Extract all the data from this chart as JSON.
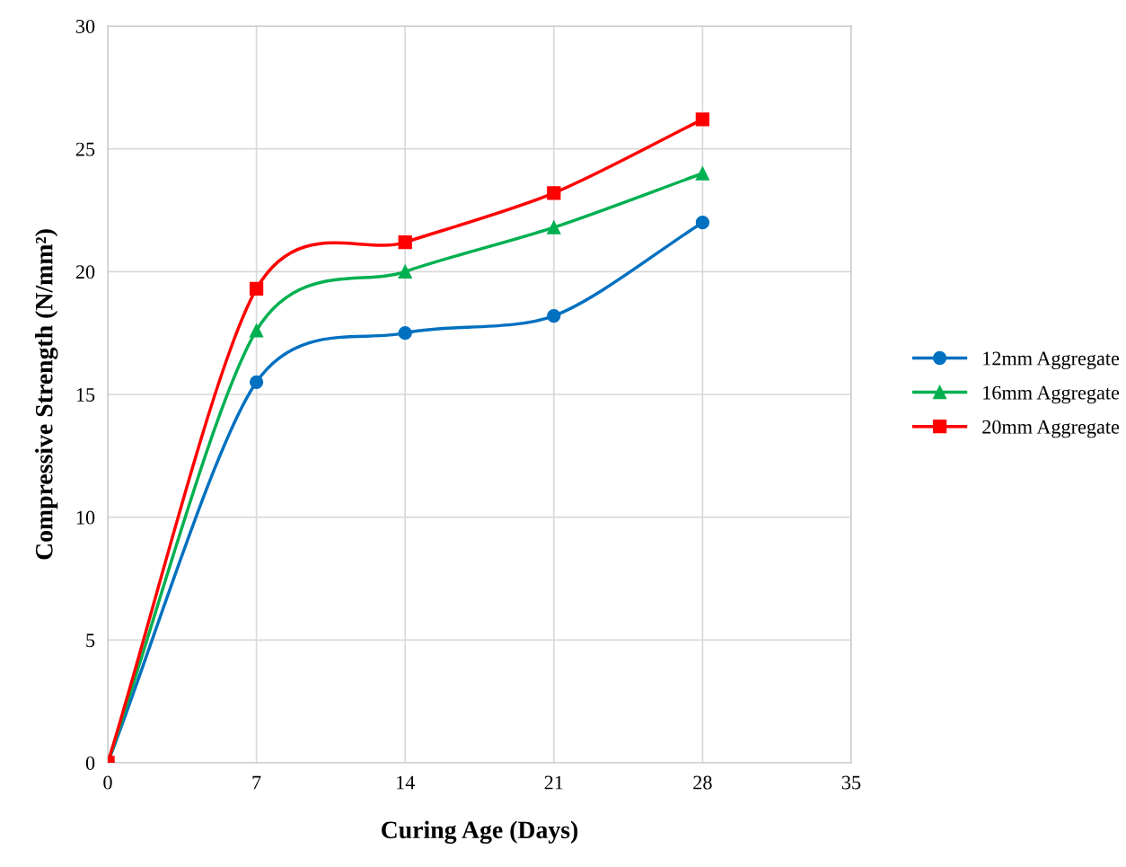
{
  "chart_data": {
    "type": "line",
    "xlabel": "Curing Age (Days)",
    "ylabel": "Compressive Strength (N/mm²)",
    "x": [
      0,
      7,
      14,
      21,
      28
    ],
    "series": [
      {
        "name": "12mm Aggregate",
        "color": "#0070c0",
        "marker": "circle",
        "values": [
          0,
          15.5,
          17.5,
          18.2,
          22.0
        ]
      },
      {
        "name": "16mm Aggregate",
        "color": "#00b050",
        "marker": "triangle",
        "values": [
          0,
          17.6,
          20.0,
          21.8,
          24.0
        ]
      },
      {
        "name": "20mm Aggregate",
        "color": "#ff0000",
        "marker": "square",
        "values": [
          0,
          19.3,
          21.2,
          23.2,
          26.2
        ]
      }
    ],
    "xlim": [
      0,
      35
    ],
    "xticks": [
      0,
      7,
      14,
      21,
      28,
      35
    ],
    "ylim": [
      0,
      30
    ],
    "yticks": [
      0,
      5,
      10,
      15,
      20,
      25,
      30
    ],
    "grid": true,
    "legend": "right",
    "line_style": "solid"
  }
}
